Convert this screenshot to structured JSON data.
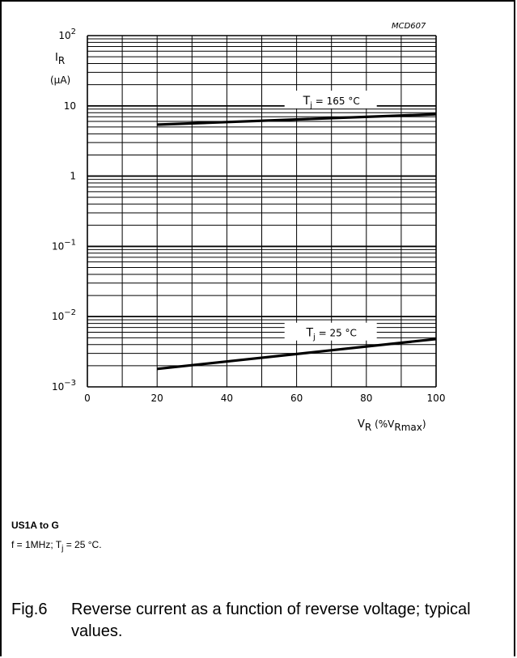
{
  "figure_id": "MCD607",
  "chart_data": {
    "type": "line",
    "title": "",
    "xlabel": "V_R (%V_Rmax)",
    "ylabel": "I_R (µA)",
    "xlim": [
      0,
      100
    ],
    "ylim": [
      0.001,
      100
    ],
    "yscale": "log",
    "grid": true,
    "x_ticks": [
      0,
      20,
      40,
      60,
      80,
      100
    ],
    "y_ticks": [
      {
        "value": 100,
        "label_base": "10",
        "label_sup": "2"
      },
      {
        "value": 10,
        "label_base": "10",
        "label_sup": ""
      },
      {
        "value": 1,
        "label_base": "1",
        "label_sup": ""
      },
      {
        "value": 0.1,
        "label_base": "10",
        "label_sup": "−1"
      },
      {
        "value": 0.01,
        "label_base": "10",
        "label_sup": "−2"
      },
      {
        "value": 0.001,
        "label_base": "10",
        "label_sup": "−3"
      }
    ],
    "series": [
      {
        "name": "Tj = 165 °C",
        "label_main": "T",
        "label_sub": "j",
        "label_rest": " = 165 °C",
        "x": [
          20,
          100
        ],
        "y": [
          5.4,
          7.6
        ]
      },
      {
        "name": "Tj = 25 °C",
        "label_main": "T",
        "label_sub": "j",
        "label_rest": " = 25 °C",
        "x": [
          20,
          100
        ],
        "y": [
          0.0018,
          0.0048
        ]
      }
    ]
  },
  "axis_labels": {
    "y_main": "I",
    "y_sub": "R",
    "y_unit": "(µA)",
    "x_main": "V",
    "x_sub": "R",
    "x_rest": " (%V",
    "x_sub2": "Rmax",
    "x_close": ")"
  },
  "conditions": {
    "title": "US1A to G",
    "line_prefix": "f = 1MHz; T",
    "line_sub": "j",
    "line_suffix": " = 25 °C."
  },
  "caption": {
    "label": "Fig.6",
    "text": "Reverse current as a function of reverse voltage; typical values."
  }
}
